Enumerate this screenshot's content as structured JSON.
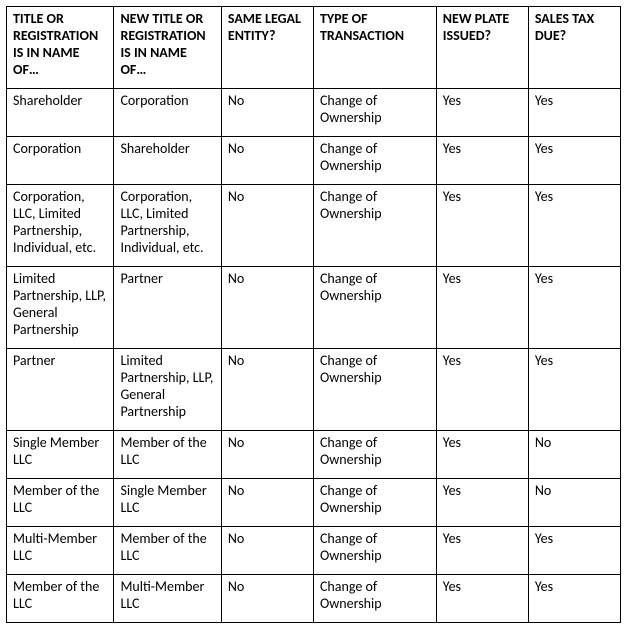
{
  "table": {
    "columns": [
      "TITLE OR REGISTRATION IS IN NAME OF…",
      "NEW TITLE OR REGISTRATION IS IN NAME OF…",
      "SAME LEGAL ENTITY?",
      "TYPE OF TRANSACTION",
      "NEW PLATE ISSUED?",
      "SALES TAX DUE?"
    ],
    "rows": [
      [
        "Shareholder",
        "Corporation",
        "No",
        "Change of Ownership",
        "Yes",
        "Yes"
      ],
      [
        "Corporation",
        "Shareholder",
        "No",
        "Change of Ownership",
        "Yes",
        "Yes"
      ],
      [
        "Corporation, LLC, Limited Partnership, Individual, etc.",
        "Corporation, LLC, Limited Partnership, Individual, etc.",
        "No",
        "Change of Ownership",
        "Yes",
        "Yes"
      ],
      [
        "Limited Partnership, LLP, General Partnership",
        "Partner",
        "No",
        "Change of Ownership",
        "Yes",
        "Yes"
      ],
      [
        "Partner",
        "Limited Partnership, LLP, General Partnership",
        "No",
        "Change of Ownership",
        "Yes",
        "Yes"
      ],
      [
        "Single Member LLC",
        "Member of the LLC",
        "No",
        "Change of Ownership",
        "Yes",
        "No"
      ],
      [
        "Member of the LLC",
        "Single Member LLC",
        "No",
        "Change of Ownership",
        "Yes",
        "No"
      ],
      [
        "Multi-Member LLC",
        "Member of the LLC",
        "No",
        "Change of Ownership",
        "Yes",
        "Yes"
      ],
      [
        "Member of the LLC",
        "Multi-Member LLC",
        "No",
        "Change of Ownership",
        "Yes",
        "Yes"
      ]
    ],
    "border_color": "#000000",
    "background_color": "#ffffff",
    "text_color": "#000000",
    "header_font_weight": "bold",
    "body_font_weight": "normal",
    "font_family": "Calibri",
    "font_size_pt": 11,
    "column_widths_pct": [
      17.5,
      17.5,
      15,
      20,
      15,
      15
    ]
  }
}
